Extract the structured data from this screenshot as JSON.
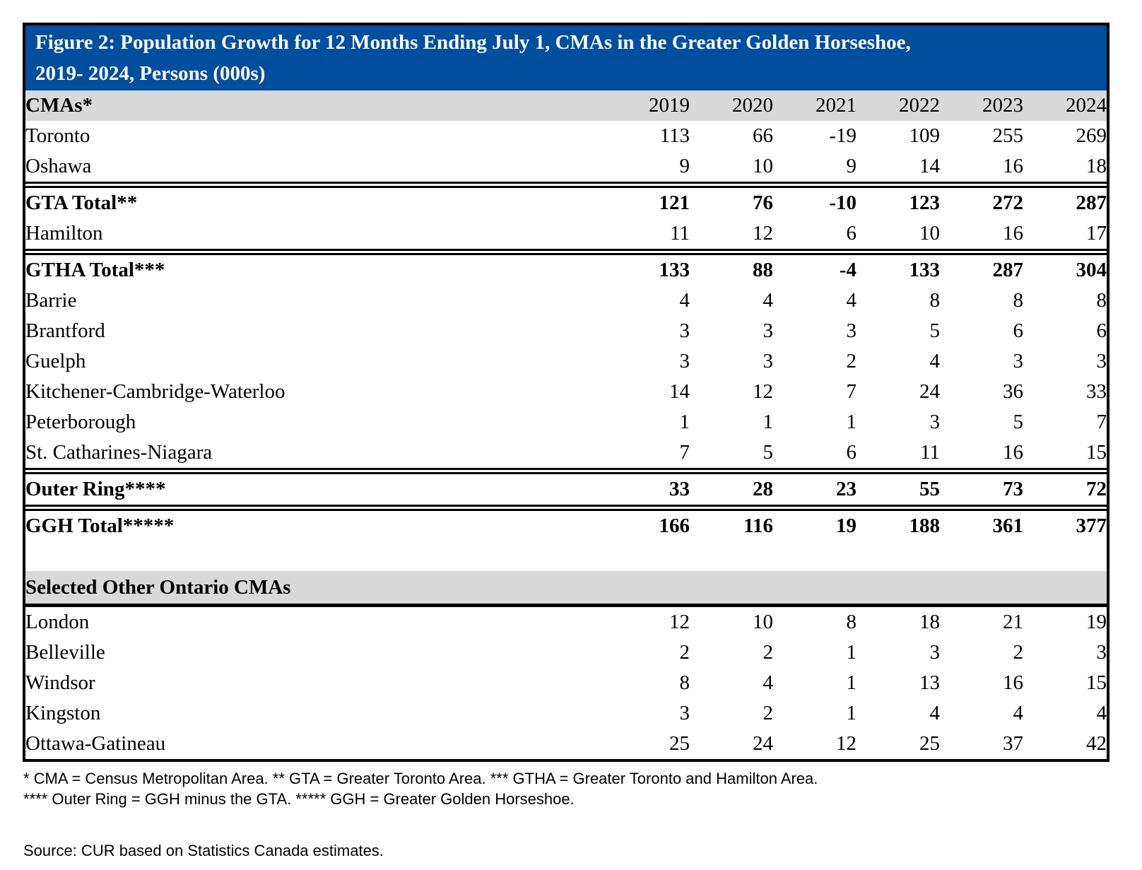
{
  "figure": {
    "title_line1": "Figure 2: Population Growth for 12 Months Ending July 1, CMAs in the Greater Golden Horseshoe,",
    "title_line2": "2019- 2024, Persons (000s)"
  },
  "chart_data": {
    "type": "table",
    "title": "Figure 2: Population Growth for 12 Months Ending July 1, CMAs in the Greater Golden Horseshoe, 2019- 2024, Persons (000s)",
    "columns": [
      "CMAs*",
      "2019",
      "2020",
      "2021",
      "2022",
      "2023",
      "2024"
    ],
    "rows": [
      [
        "Toronto",
        113,
        66,
        -19,
        109,
        255,
        269
      ],
      [
        "Oshawa",
        9,
        10,
        9,
        14,
        16,
        18
      ],
      [
        "GTA Total**",
        121,
        76,
        -10,
        123,
        272,
        287
      ],
      [
        "Hamilton",
        11,
        12,
        6,
        10,
        16,
        17
      ],
      [
        "GTHA Total***",
        133,
        88,
        -4,
        133,
        287,
        304
      ],
      [
        "Barrie",
        4,
        4,
        4,
        8,
        8,
        8
      ],
      [
        "Brantford",
        3,
        3,
        3,
        5,
        6,
        6
      ],
      [
        "Guelph",
        3,
        3,
        2,
        4,
        3,
        3
      ],
      [
        "Kitchener-Cambridge-Waterloo",
        14,
        12,
        7,
        24,
        36,
        33
      ],
      [
        "Peterborough",
        1,
        1,
        1,
        3,
        5,
        7
      ],
      [
        "St. Catharines-Niagara",
        7,
        5,
        6,
        11,
        16,
        15
      ],
      [
        "Outer Ring****",
        33,
        28,
        23,
        55,
        73,
        72
      ],
      [
        "GGH Total*****",
        166,
        116,
        19,
        188,
        361,
        377
      ],
      [
        "London",
        12,
        10,
        8,
        18,
        21,
        19
      ],
      [
        "Belleville",
        2,
        2,
        1,
        3,
        2,
        3
      ],
      [
        "Windsor",
        8,
        4,
        1,
        13,
        16,
        15
      ],
      [
        "Kingston",
        3,
        2,
        1,
        4,
        4,
        4
      ],
      [
        "Ottawa-Gatineau",
        25,
        24,
        12,
        25,
        37,
        42
      ]
    ],
    "bold_rows": [
      "GTA Total**",
      "GTHA Total***",
      "Outer Ring****",
      "GGH Total*****"
    ],
    "section_break": {
      "after_row": "GGH Total*****",
      "label": "Selected Other Ontario CMAs"
    }
  },
  "footnotes": [
    "* CMA = Census Metropolitan Area. ** GTA = Greater Toronto Area. *** GTHA = Greater Toronto and Hamilton Area.",
    "**** Outer Ring = GGH minus the GTA. ***** GGH = Greater Golden Horseshoe."
  ],
  "source": "Source: CUR based on Statistics Canada estimates.",
  "colors": {
    "title_bar": "#004E9E",
    "title_text": "#FFFFFF",
    "header_band": "#D9D9D9",
    "border": "#000000"
  }
}
